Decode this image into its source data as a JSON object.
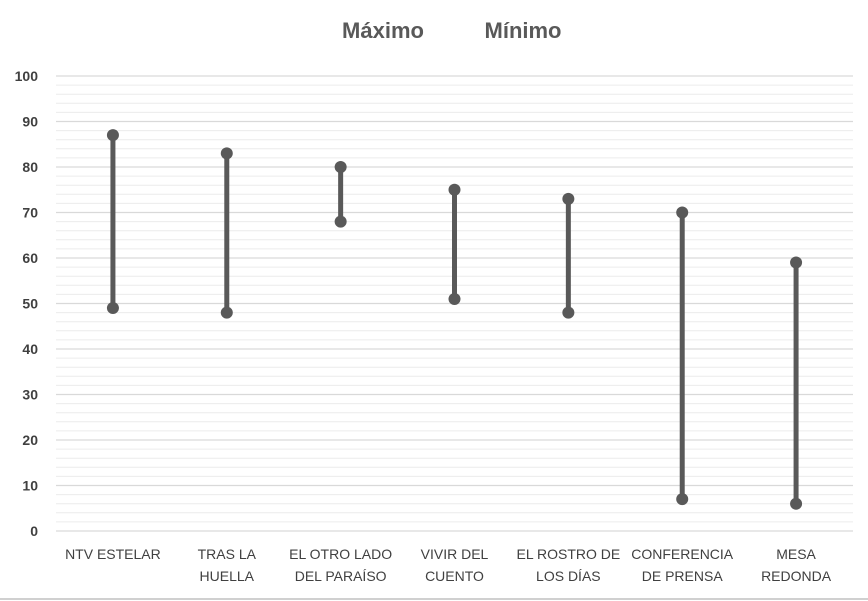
{
  "chart_data": {
    "type": "range",
    "title": "",
    "legend": [
      {
        "label": "Máximo"
      },
      {
        "label": "Mínimo"
      }
    ],
    "ylim": [
      0,
      100
    ],
    "yticks": [
      "0",
      "10",
      "20",
      "30",
      "40",
      "50",
      "60",
      "70",
      "80",
      "90",
      "100"
    ],
    "grid": true,
    "categories": [
      [
        "NTV ESTELAR"
      ],
      [
        "TRAS LA",
        "HUELLA"
      ],
      [
        "EL OTRO LADO",
        "DEL PARAÍSO"
      ],
      [
        "VIVIR DEL",
        "CUENTO"
      ],
      [
        "EL ROSTRO DE",
        "LOS DÍAS"
      ],
      [
        "CONFERENCIA",
        "DE PRENSA"
      ],
      [
        "MESA",
        "REDONDA"
      ]
    ],
    "series": [
      {
        "name": "Máximo",
        "values": [
          87,
          83,
          80,
          75,
          73,
          70,
          59
        ]
      },
      {
        "name": "Mínimo",
        "values": [
          49,
          48,
          68,
          51,
          48,
          7,
          6
        ]
      }
    ],
    "colors": {
      "line": "#595959",
      "marker": "#595959",
      "grid_major": "#d9d9d9",
      "grid_minor": "#ececec"
    }
  }
}
